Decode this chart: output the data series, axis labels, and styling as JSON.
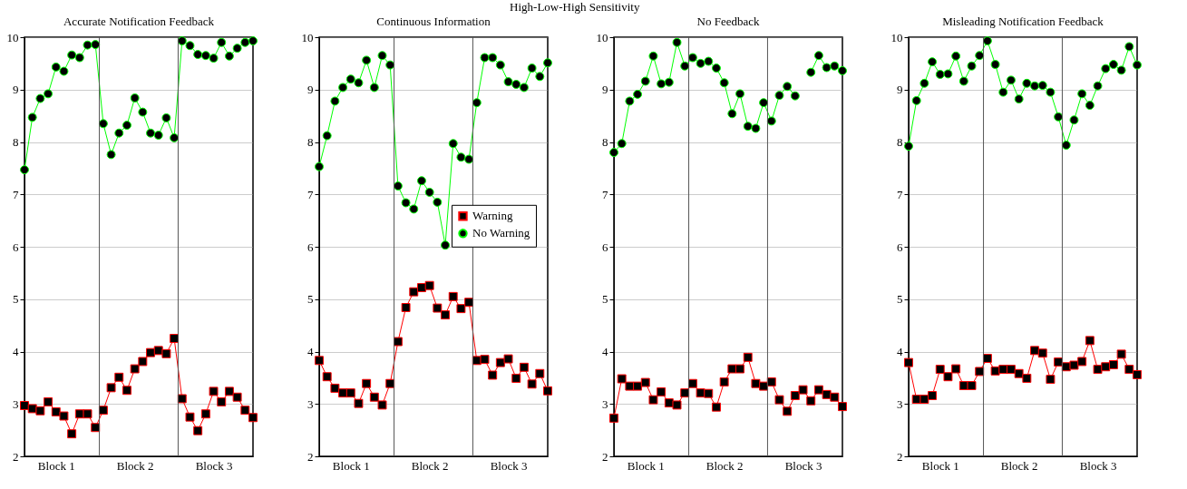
{
  "chart_data": [
    {
      "type": "line",
      "title": "Accurate Notification Feedback",
      "annotations": [
        "High-Low-High Sensitivity"
      ],
      "categories": [
        null,
        null,
        null,
        null,
        "Block 1",
        null,
        null,
        null,
        null,
        null,
        null,
        null,
        null,
        null,
        "Block 2",
        null,
        null,
        null,
        null,
        null,
        null,
        null,
        null,
        null,
        "Block 3",
        null,
        null,
        null,
        null,
        null
      ],
      "ylim": [
        2,
        10
      ],
      "yticks": [
        2,
        3,
        4,
        5,
        6,
        7,
        8,
        9,
        10
      ],
      "grid": "y",
      "series": [
        {
          "color": "#ff0000",
          "marker": "square",
          "values": [
            2.97,
            2.91,
            2.87,
            3.04,
            2.85,
            2.77,
            2.43,
            2.81,
            2.81,
            2.55,
            2.88,
            3.31,
            3.51,
            3.26,
            3.67,
            3.81,
            3.98,
            4.02,
            3.96,
            4.25,
            3.1,
            2.75,
            2.49,
            2.81,
            3.24,
            3.04,
            3.24,
            3.13,
            2.88,
            2.74
          ]
        },
        {
          "color": "#00ff00",
          "marker": "circle",
          "values": [
            7.47,
            8.47,
            8.83,
            8.92,
            9.43,
            9.35,
            9.66,
            9.61,
            9.85,
            9.86,
            8.35,
            7.76,
            8.17,
            8.32,
            8.84,
            8.57,
            8.17,
            8.13,
            8.46,
            8.08,
            9.93,
            9.84,
            9.67,
            9.65,
            9.6,
            9.9,
            9.64,
            9.79,
            9.9,
            9.93
          ]
        }
      ]
    },
    {
      "type": "line",
      "title": "Continuous Information",
      "categories": [
        null,
        null,
        null,
        null,
        "Block 1",
        null,
        null,
        null,
        null,
        null,
        null,
        null,
        null,
        null,
        "Block 2",
        null,
        null,
        null,
        null,
        null,
        null,
        null,
        null,
        null,
        "Block 3",
        null,
        null,
        null,
        null,
        null
      ],
      "ylim": [
        2,
        10
      ],
      "yticks": [
        2,
        3,
        4,
        5,
        6,
        7,
        8,
        9,
        10
      ],
      "grid": "y",
      "legend": "right",
      "series": [
        {
          "name": "Warning",
          "color": "#ff0000",
          "marker": "square",
          "values": [
            3.83,
            3.52,
            3.3,
            3.21,
            3.21,
            3.01,
            3.39,
            3.13,
            2.98,
            3.39,
            4.19,
            4.84,
            5.14,
            5.22,
            5.26,
            4.83,
            4.7,
            5.05,
            4.82,
            4.94,
            3.83,
            3.85,
            3.55,
            3.79,
            3.86,
            3.49,
            3.7,
            3.38,
            3.58,
            3.25
          ]
        },
        {
          "name": "No Warning",
          "color": "#00ff00",
          "marker": "circle",
          "values": [
            7.53,
            8.12,
            8.78,
            9.04,
            9.2,
            9.13,
            9.56,
            9.04,
            9.65,
            9.47,
            7.16,
            6.84,
            6.72,
            7.26,
            7.04,
            6.85,
            6.03,
            7.97,
            7.71,
            7.67,
            8.75,
            9.61,
            9.61,
            9.47,
            9.15,
            9.1,
            9.04,
            9.41,
            9.25,
            9.51
          ]
        }
      ]
    },
    {
      "type": "line",
      "title": "No Feedback",
      "categories": [
        null,
        null,
        null,
        null,
        "Block 1",
        null,
        null,
        null,
        null,
        null,
        null,
        null,
        null,
        null,
        "Block 2",
        null,
        null,
        null,
        null,
        null,
        null,
        null,
        null,
        null,
        "Block 3",
        null,
        null,
        null,
        null,
        null
      ],
      "ylim": [
        2,
        10
      ],
      "yticks": [
        2,
        3,
        4,
        5,
        6,
        7,
        8,
        9,
        10
      ],
      "grid": "y",
      "series": [
        {
          "color": "#ff0000",
          "marker": "square",
          "values": [
            2.73,
            3.48,
            3.34,
            3.34,
            3.41,
            3.08,
            3.23,
            3.02,
            2.98,
            3.21,
            3.39,
            3.21,
            3.2,
            2.94,
            3.42,
            3.67,
            3.67,
            3.89,
            3.39,
            3.34,
            3.42,
            3.08,
            2.86,
            3.16,
            3.27,
            3.06,
            3.27,
            3.18,
            3.13,
            2.95
          ]
        },
        {
          "color": "#00ff00",
          "marker": "circle",
          "values": [
            7.8,
            7.97,
            8.78,
            8.91,
            9.16,
            9.64,
            9.11,
            9.14,
            9.9,
            9.45,
            9.61,
            9.5,
            9.54,
            9.41,
            9.13,
            8.54,
            8.92,
            8.3,
            8.26,
            8.75,
            8.4,
            8.89,
            9.06,
            8.88,
            null,
            9.33,
            9.65,
            9.42,
            9.45,
            9.36
          ]
        }
      ]
    },
    {
      "type": "line",
      "title": "Misleading Notification Feedback",
      "categories": [
        null,
        null,
        null,
        null,
        "Block 1",
        null,
        null,
        null,
        null,
        null,
        null,
        null,
        null,
        null,
        "Block 2",
        null,
        null,
        null,
        null,
        null,
        null,
        null,
        null,
        null,
        "Block 3",
        null,
        null,
        null,
        null,
        null
      ],
      "ylim": [
        2,
        10
      ],
      "yticks": [
        2,
        3,
        4,
        5,
        6,
        7,
        8,
        9,
        10
      ],
      "grid": "y",
      "series": [
        {
          "color": "#ff0000",
          "marker": "square",
          "values": [
            3.79,
            3.09,
            3.09,
            3.16,
            3.66,
            3.52,
            3.67,
            3.35,
            3.35,
            3.62,
            3.87,
            3.63,
            3.66,
            3.66,
            3.58,
            3.49,
            4.02,
            3.97,
            3.47,
            3.8,
            3.71,
            3.74,
            3.81,
            4.21,
            3.66,
            3.71,
            3.75,
            3.95,
            3.66,
            3.56
          ]
        },
        {
          "color": "#00ff00",
          "marker": "circle",
          "values": [
            7.92,
            8.79,
            9.12,
            9.53,
            9.29,
            9.3,
            9.64,
            9.16,
            9.45,
            9.65,
            9.93,
            9.48,
            8.95,
            9.18,
            8.82,
            9.12,
            9.07,
            9.08,
            8.95,
            8.48,
            7.94,
            8.42,
            8.92,
            8.7,
            9.07,
            9.4,
            9.48,
            9.37,
            9.82,
            9.47
          ]
        }
      ]
    }
  ]
}
